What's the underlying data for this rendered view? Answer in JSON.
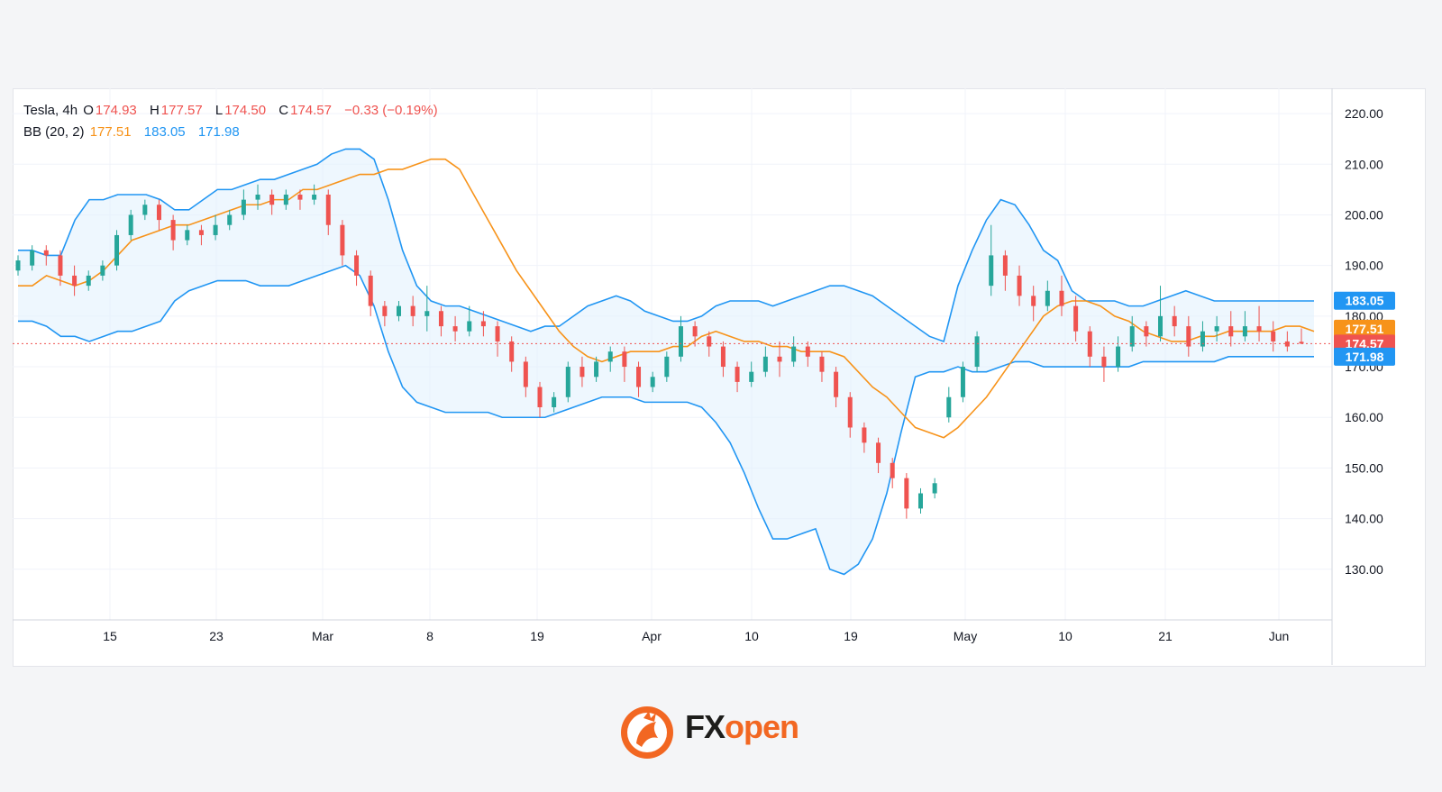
{
  "legend": {
    "symbol": "Tesla, 4h",
    "o_label": "O",
    "o_value": "174.93",
    "h_label": "H",
    "h_value": "177.57",
    "l_label": "L",
    "l_value": "174.50",
    "c_label": "C",
    "c_value": "174.57",
    "change": "−0.33 (−0.19%)",
    "bb_label": "BB (20, 2)",
    "bb_mid": "177.51",
    "bb_upper": "183.05",
    "bb_lower": "171.98"
  },
  "colors": {
    "up": "#26a69a",
    "down": "#ef5350",
    "bb_basis": "#f7931a",
    "bb_band": "#2196f3",
    "bb_fill": "#e3f2fd"
  },
  "chart_data": {
    "type": "candlestick",
    "ylim": [
      120,
      225
    ],
    "grid": true,
    "y_ticks": [
      "220.00",
      "210.00",
      "200.00",
      "190.00",
      "180.00",
      "170.00",
      "160.00",
      "150.00",
      "140.00",
      "130.00"
    ],
    "x_ticks": [
      "15",
      "23",
      "Mar",
      "8",
      "19",
      "Apr",
      "10",
      "19",
      "May",
      "10",
      "21",
      "Jun"
    ],
    "price_labels": [
      {
        "value": 183.05,
        "text": "183.05",
        "color": "#2196f3"
      },
      {
        "value": 177.51,
        "text": "177.51",
        "color": "#f7931a"
      },
      {
        "value": 174.57,
        "text": "174.57",
        "color": "#ef5350"
      },
      {
        "value": 171.98,
        "text": "171.98",
        "color": "#2196f3"
      }
    ],
    "last_close": 174.57,
    "bb_basis": [
      186,
      186,
      188,
      187,
      186,
      187,
      189,
      192,
      195,
      196,
      197,
      198,
      198,
      199,
      200,
      201,
      202,
      202,
      203,
      203,
      205,
      205,
      206,
      207,
      208,
      208,
      209,
      209,
      210,
      211,
      211,
      209,
      204,
      199,
      194,
      189,
      185,
      181,
      177,
      174,
      172,
      171,
      172,
      173,
      173,
      173,
      174,
      174,
      176,
      177,
      176,
      175,
      175,
      174,
      174,
      173,
      173,
      173,
      172,
      169,
      166,
      164,
      161,
      158,
      157,
      156,
      158,
      161,
      164,
      168,
      172,
      176,
      180,
      182,
      183,
      183,
      182,
      180,
      179,
      177,
      176,
      175,
      175,
      176,
      176,
      177,
      177,
      177,
      177,
      178,
      178,
      177
    ],
    "bb_upper": [
      193,
      193,
      192,
      192,
      199,
      203,
      203,
      204,
      204,
      204,
      203,
      201,
      201,
      203,
      205,
      205,
      206,
      207,
      207,
      208,
      209,
      210,
      212,
      213,
      213,
      211,
      203,
      193,
      186,
      183,
      182,
      182,
      181,
      180,
      179,
      178,
      177,
      178,
      178,
      180,
      182,
      183,
      184,
      183,
      181,
      180,
      179,
      179,
      180,
      182,
      183,
      183,
      183,
      182,
      183,
      184,
      185,
      186,
      186,
      185,
      184,
      182,
      180,
      178,
      176,
      175,
      186,
      193,
      199,
      203,
      202,
      198,
      193,
      191,
      185,
      183,
      183,
      183,
      182,
      182,
      183,
      184,
      185,
      184,
      183,
      183,
      183,
      183,
      183,
      183,
      183,
      183
    ],
    "bb_lower": [
      179,
      179,
      178,
      176,
      176,
      175,
      176,
      177,
      177,
      178,
      179,
      183,
      185,
      186,
      187,
      187,
      187,
      186,
      186,
      186,
      187,
      188,
      189,
      190,
      188,
      182,
      173,
      166,
      163,
      162,
      161,
      161,
      161,
      161,
      160,
      160,
      160,
      160,
      161,
      162,
      163,
      164,
      164,
      164,
      163,
      163,
      163,
      163,
      162,
      159,
      155,
      149,
      142,
      136,
      136,
      137,
      138,
      130,
      129,
      131,
      136,
      145,
      157,
      168,
      169,
      169,
      170,
      169,
      169,
      170,
      171,
      171,
      170,
      170,
      170,
      170,
      170,
      170,
      170,
      171,
      171,
      171,
      171,
      171,
      171,
      172,
      172,
      172,
      172,
      172,
      172,
      172
    ],
    "candles": [
      [
        189,
        191,
        188,
        192
      ],
      [
        190,
        193,
        189,
        194
      ],
      [
        193,
        192,
        190,
        194
      ],
      [
        192,
        188,
        186,
        193
      ],
      [
        188,
        186,
        184,
        190
      ],
      [
        186,
        188,
        185,
        189
      ],
      [
        188,
        190,
        187,
        191
      ],
      [
        190,
        196,
        189,
        197
      ],
      [
        196,
        200,
        195,
        201
      ],
      [
        200,
        202,
        199,
        203
      ],
      [
        202,
        199,
        197,
        203
      ],
      [
        199,
        195,
        193,
        200
      ],
      [
        195,
        197,
        194,
        198
      ],
      [
        197,
        196,
        194,
        198
      ],
      [
        196,
        198,
        195,
        200
      ],
      [
        198,
        200,
        197,
        201
      ],
      [
        200,
        203,
        199,
        205
      ],
      [
        203,
        204,
        201,
        206
      ],
      [
        204,
        202,
        200,
        205
      ],
      [
        202,
        204,
        201,
        205
      ],
      [
        204,
        203,
        201,
        205
      ],
      [
        203,
        204,
        202,
        206
      ],
      [
        204,
        198,
        196,
        205
      ],
      [
        198,
        192,
        190,
        199
      ],
      [
        192,
        188,
        186,
        193
      ],
      [
        188,
        182,
        180,
        189
      ],
      [
        182,
        180,
        178,
        183
      ],
      [
        180,
        182,
        179,
        183
      ],
      [
        182,
        180,
        178,
        184
      ],
      [
        180,
        181,
        177,
        186
      ],
      [
        181,
        178,
        176,
        182
      ],
      [
        178,
        177,
        175,
        180
      ],
      [
        177,
        179,
        176,
        182
      ],
      [
        179,
        178,
        176,
        181
      ],
      [
        178,
        175,
        172,
        179
      ],
      [
        175,
        171,
        169,
        176
      ],
      [
        171,
        166,
        164,
        172
      ],
      [
        166,
        162,
        160,
        167
      ],
      [
        162,
        164,
        161,
        165
      ],
      [
        164,
        170,
        163,
        171
      ],
      [
        170,
        168,
        166,
        172
      ],
      [
        168,
        171,
        167,
        172
      ],
      [
        171,
        173,
        169,
        174
      ],
      [
        173,
        170,
        167,
        174
      ],
      [
        170,
        166,
        164,
        171
      ],
      [
        166,
        168,
        165,
        169
      ],
      [
        168,
        172,
        167,
        173
      ],
      [
        172,
        178,
        171,
        180
      ],
      [
        178,
        176,
        174,
        179
      ],
      [
        176,
        174,
        172,
        177
      ],
      [
        174,
        170,
        168,
        175
      ],
      [
        170,
        167,
        165,
        171
      ],
      [
        167,
        169,
        166,
        171
      ],
      [
        169,
        172,
        168,
        174
      ],
      [
        172,
        171,
        168,
        175
      ],
      [
        171,
        174,
        170,
        176
      ],
      [
        174,
        172,
        170,
        175
      ],
      [
        172,
        169,
        167,
        173
      ],
      [
        169,
        164,
        162,
        170
      ],
      [
        164,
        158,
        156,
        165
      ],
      [
        158,
        155,
        153,
        159
      ],
      [
        155,
        151,
        149,
        156
      ],
      [
        151,
        148,
        146,
        152
      ],
      [
        148,
        142,
        140,
        149
      ],
      [
        142,
        145,
        141,
        146
      ],
      [
        145,
        147,
        144,
        148
      ],
      [
        160,
        164,
        159,
        166
      ],
      [
        164,
        170,
        163,
        171
      ],
      [
        170,
        176,
        169,
        177
      ],
      [
        186,
        192,
        184,
        198
      ],
      [
        192,
        188,
        185,
        193
      ],
      [
        188,
        184,
        182,
        190
      ],
      [
        184,
        182,
        179,
        186
      ],
      [
        182,
        185,
        181,
        187
      ],
      [
        185,
        182,
        180,
        188
      ],
      [
        182,
        177,
        175,
        184
      ],
      [
        177,
        172,
        170,
        178
      ],
      [
        172,
        170,
        167,
        174
      ],
      [
        170,
        174,
        169,
        176
      ],
      [
        174,
        178,
        173,
        180
      ],
      [
        178,
        176,
        174,
        179
      ],
      [
        176,
        180,
        175,
        186
      ],
      [
        180,
        178,
        176,
        182
      ],
      [
        178,
        174,
        172,
        180
      ],
      [
        174,
        177,
        173,
        179
      ],
      [
        177,
        178,
        175,
        180
      ],
      [
        178,
        176,
        174,
        181
      ],
      [
        176,
        178,
        175,
        181
      ],
      [
        178,
        177,
        175,
        182
      ],
      [
        177,
        175,
        173,
        179
      ],
      [
        175,
        174,
        173,
        177
      ],
      [
        174.93,
        174.57,
        174.5,
        177.57
      ]
    ]
  }
}
